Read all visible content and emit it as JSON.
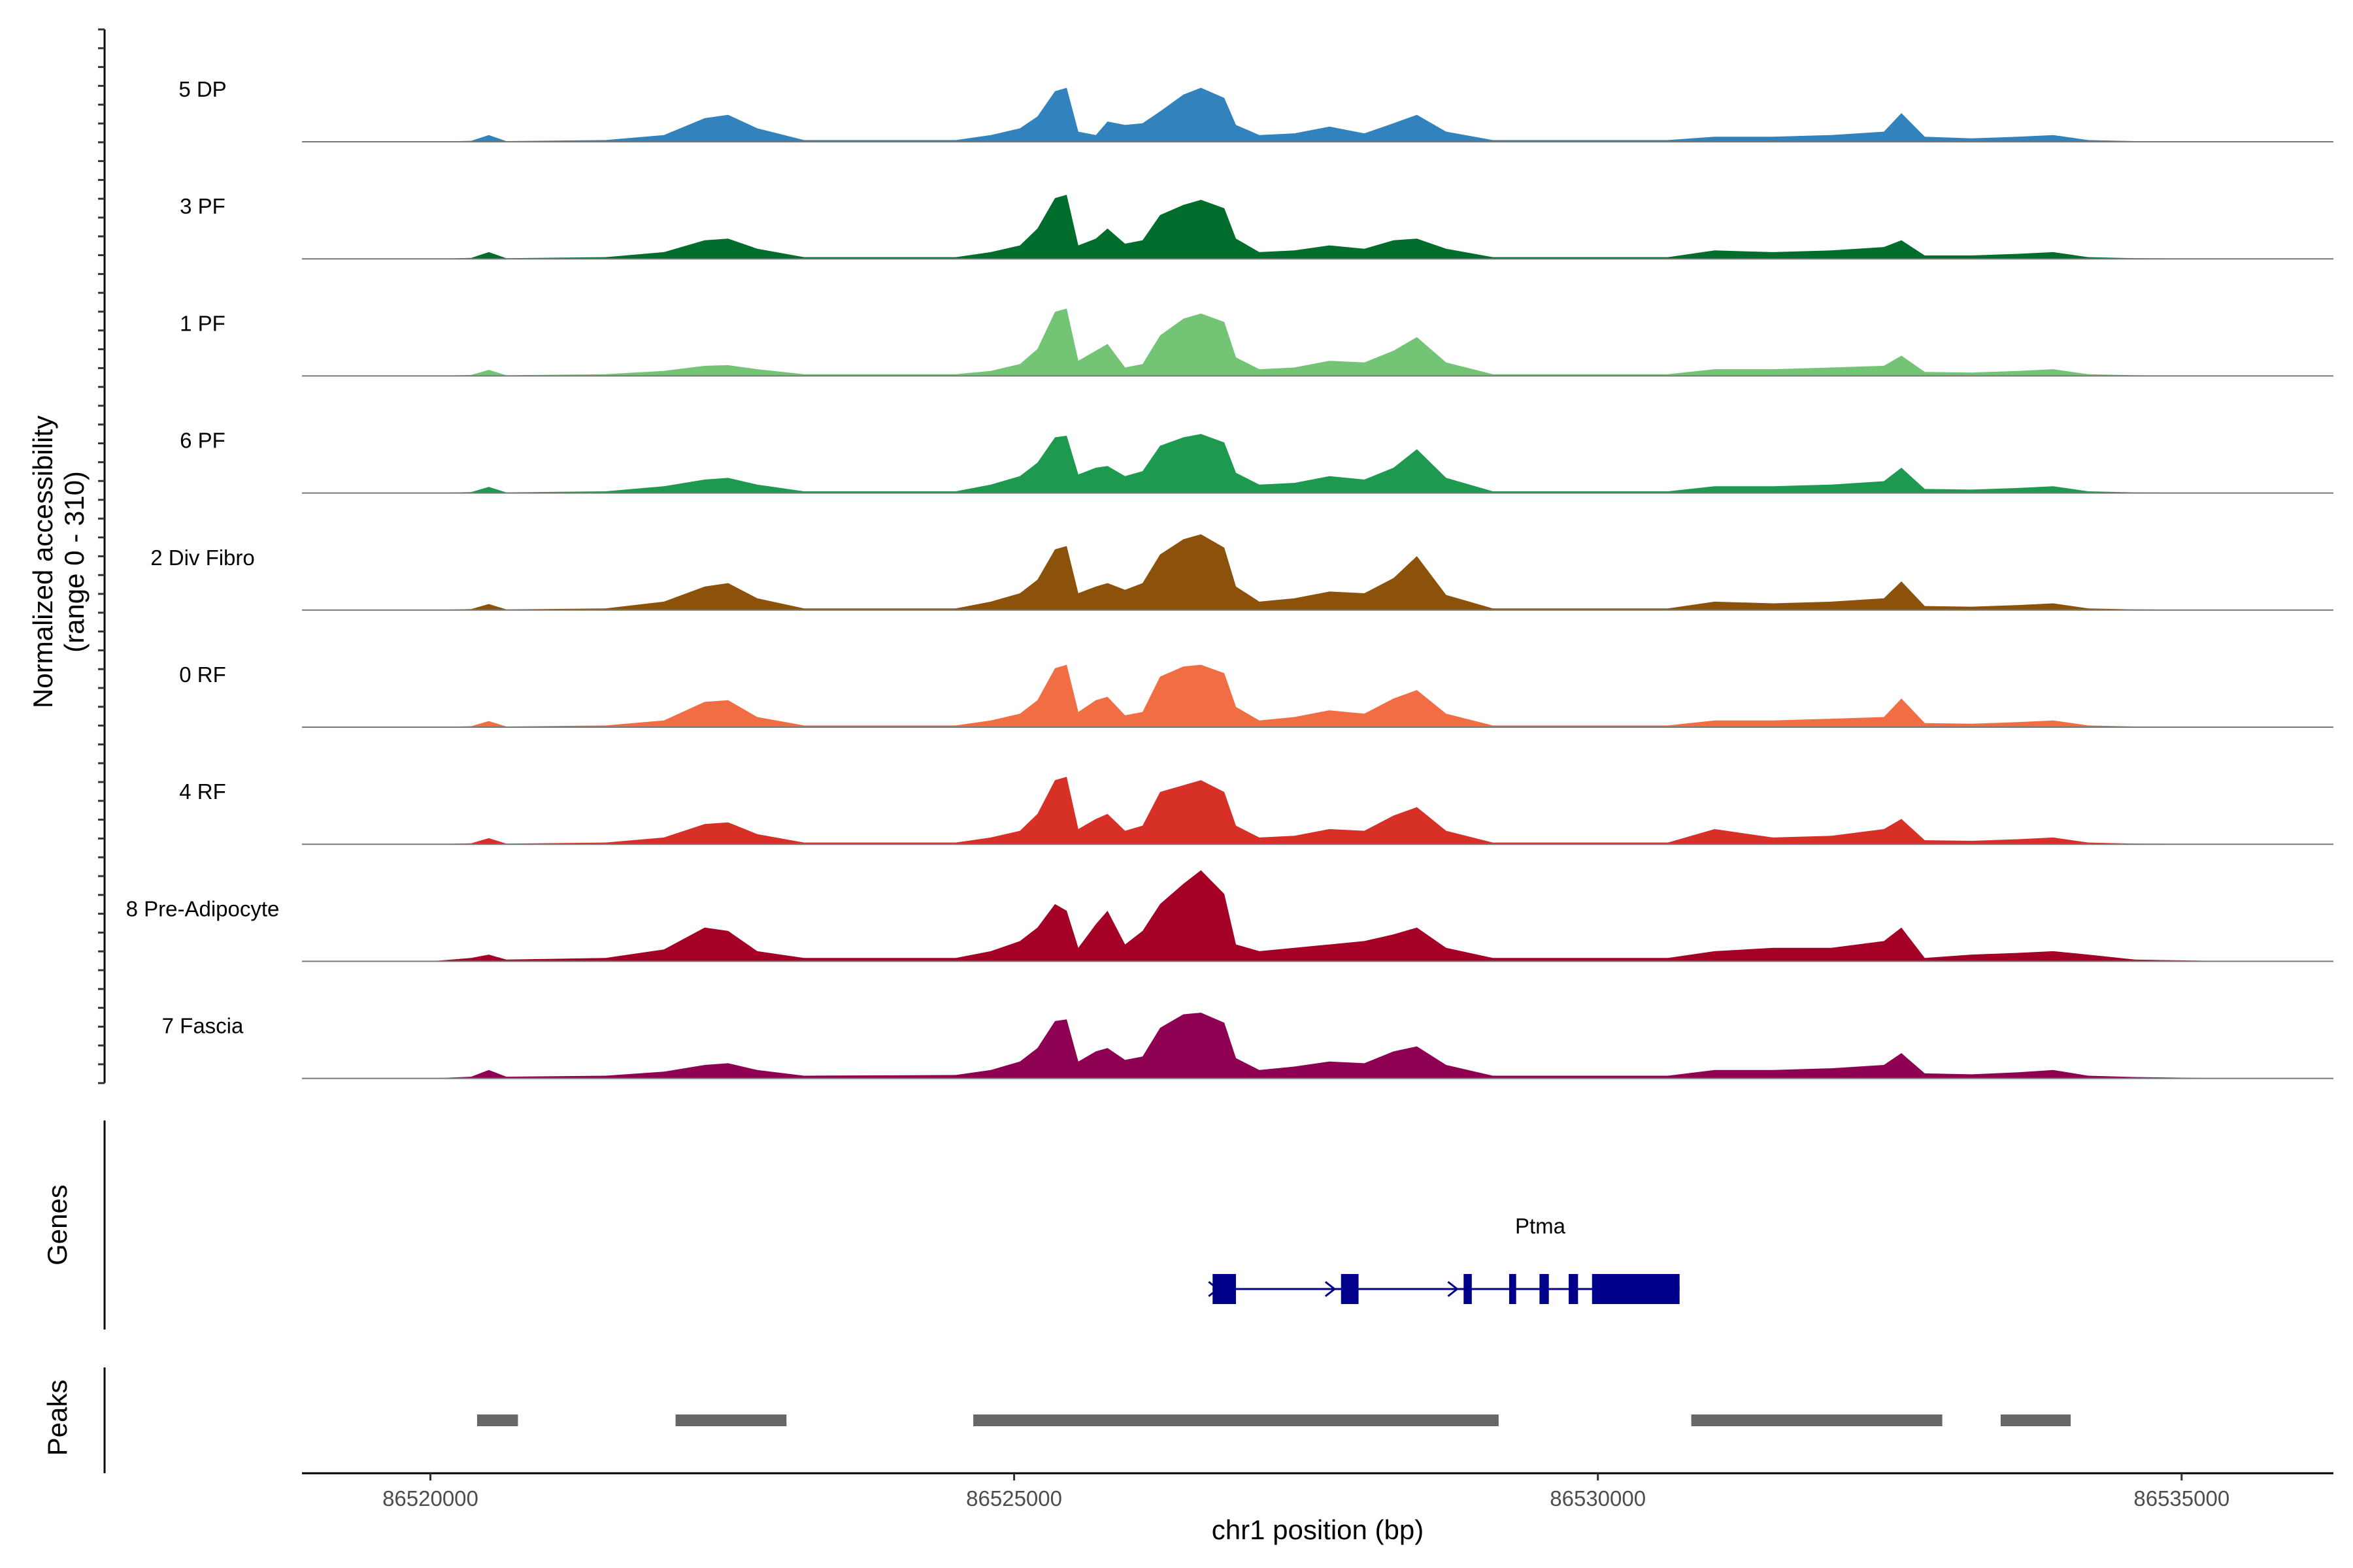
{
  "chart_data": {
    "type": "area",
    "title": "",
    "xlabel": "chr1 position (bp)",
    "ylabel": "Normalized accessibility\n(range 0 - 310)",
    "y_range": [
      0,
      310
    ],
    "x_range": [
      86518900,
      86536300
    ],
    "x_ticks": [
      86520000,
      86525000,
      86530000,
      86535000
    ],
    "x_tick_labels": [
      "86520000",
      "86525000",
      "86530000",
      "86535000"
    ],
    "tracks": [
      {
        "name": "5 DP",
        "color": "#3182BD",
        "x": [
          86518900,
          86520000,
          86520350,
          86520500,
          86520650,
          86521500,
          86522000,
          86522350,
          86522550,
          86522800,
          86523200,
          86524500,
          86524800,
          86525050,
          86525200,
          86525350,
          86525450,
          86525550,
          86525700,
          86525800,
          86525950,
          86526100,
          86526250,
          86526450,
          86526600,
          86526800,
          86526900,
          86527100,
          86527400,
          86527700,
          86528000,
          86528250,
          86528450,
          86528700,
          86529100,
          86530600,
          86531000,
          86531500,
          86532000,
          86532450,
          86532600,
          86532800,
          86533200,
          86533600,
          86533900,
          86534200,
          86534600,
          86535500,
          86536300
        ],
        "values": [
          0,
          0,
          3,
          20,
          2,
          5,
          20,
          70,
          80,
          40,
          5,
          5,
          20,
          40,
          75,
          150,
          160,
          30,
          20,
          60,
          50,
          55,
          90,
          140,
          160,
          130,
          50,
          20,
          25,
          45,
          25,
          55,
          80,
          30,
          5,
          5,
          15,
          15,
          20,
          30,
          85,
          15,
          10,
          15,
          20,
          5,
          2,
          0,
          0
        ]
      },
      {
        "name": "3 PF",
        "color": "#006D2C",
        "x": [
          86518900,
          86520000,
          86520350,
          86520500,
          86520650,
          86521500,
          86522000,
          86522350,
          86522550,
          86522800,
          86523200,
          86524500,
          86524800,
          86525050,
          86525200,
          86525350,
          86525450,
          86525550,
          86525700,
          86525800,
          86525950,
          86526100,
          86526250,
          86526450,
          86526600,
          86526800,
          86526900,
          86527100,
          86527400,
          86527700,
          86528000,
          86528250,
          86528450,
          86528700,
          86529100,
          86530600,
          86531000,
          86531500,
          86532000,
          86532450,
          86532600,
          86532800,
          86533200,
          86533600,
          86533900,
          86534200,
          86534600,
          86535500,
          86536300
        ],
        "values": [
          0,
          0,
          3,
          20,
          2,
          5,
          20,
          55,
          60,
          30,
          5,
          5,
          20,
          40,
          90,
          180,
          190,
          40,
          60,
          90,
          45,
          55,
          130,
          160,
          175,
          150,
          60,
          20,
          25,
          40,
          30,
          55,
          60,
          30,
          5,
          5,
          25,
          20,
          25,
          35,
          55,
          10,
          10,
          15,
          20,
          5,
          2,
          0,
          0
        ]
      },
      {
        "name": "1 PF",
        "color": "#74C476",
        "x": [
          86518900,
          86520000,
          86520350,
          86520500,
          86520650,
          86521500,
          86522000,
          86522350,
          86522550,
          86522800,
          86523200,
          86524500,
          86524800,
          86525050,
          86525200,
          86525350,
          86525450,
          86525550,
          86525700,
          86525800,
          86525950,
          86526100,
          86526250,
          86526450,
          86526600,
          86526800,
          86526900,
          86527100,
          86527400,
          86527700,
          86528000,
          86528250,
          86528450,
          86528700,
          86529100,
          86530600,
          86531000,
          86531500,
          86532000,
          86532450,
          86532600,
          86532800,
          86533200,
          86533600,
          86533900,
          86534200,
          86534600,
          86535500,
          86536300
        ],
        "values": [
          0,
          0,
          3,
          18,
          2,
          5,
          15,
          30,
          32,
          20,
          5,
          5,
          15,
          35,
          80,
          190,
          200,
          45,
          75,
          95,
          25,
          35,
          120,
          170,
          185,
          160,
          55,
          20,
          25,
          45,
          40,
          75,
          115,
          40,
          5,
          5,
          20,
          20,
          25,
          30,
          60,
          12,
          10,
          15,
          20,
          5,
          2,
          0,
          0
        ]
      },
      {
        "name": "6 PF",
        "color": "#1D9A50",
        "x": [
          86518900,
          86520000,
          86520350,
          86520500,
          86520650,
          86521500,
          86522000,
          86522350,
          86522550,
          86522800,
          86523200,
          86524500,
          86524800,
          86525050,
          86525200,
          86525350,
          86525450,
          86525550,
          86525700,
          86525800,
          86525950,
          86526100,
          86526250,
          86526450,
          86526600,
          86526800,
          86526900,
          86527100,
          86527400,
          86527700,
          86528000,
          86528250,
          86528450,
          86528700,
          86529100,
          86530600,
          86531000,
          86531500,
          86532000,
          86532450,
          86532600,
          86532800,
          86533200,
          86533600,
          86533900,
          86534200,
          86534600,
          86535500,
          86536300
        ],
        "values": [
          0,
          0,
          3,
          18,
          2,
          5,
          20,
          40,
          45,
          25,
          5,
          5,
          25,
          50,
          90,
          165,
          170,
          55,
          75,
          80,
          50,
          65,
          140,
          165,
          175,
          150,
          60,
          25,
          30,
          50,
          40,
          75,
          130,
          45,
          5,
          5,
          20,
          20,
          25,
          35,
          75,
          12,
          10,
          15,
          20,
          5,
          2,
          0,
          0
        ]
      },
      {
        "name": "2 Div Fibro",
        "color": "#8C510A",
        "x": [
          86518900,
          86520000,
          86520350,
          86520500,
          86520650,
          86521500,
          86522000,
          86522350,
          86522550,
          86522800,
          86523200,
          86524500,
          86524800,
          86525050,
          86525200,
          86525350,
          86525450,
          86525550,
          86525700,
          86525800,
          86525950,
          86526100,
          86526250,
          86526450,
          86526600,
          86526800,
          86526900,
          86527100,
          86527400,
          86527700,
          86528000,
          86528250,
          86528450,
          86528700,
          86529100,
          86530600,
          86531000,
          86531500,
          86532000,
          86532450,
          86532600,
          86532800,
          86533200,
          86533600,
          86533900,
          86534200,
          86534600,
          86535500,
          86536300
        ],
        "values": [
          0,
          0,
          3,
          18,
          2,
          5,
          25,
          70,
          80,
          35,
          5,
          5,
          25,
          50,
          90,
          180,
          190,
          50,
          70,
          80,
          60,
          80,
          165,
          210,
          225,
          185,
          70,
          25,
          35,
          55,
          50,
          95,
          160,
          45,
          5,
          5,
          25,
          20,
          25,
          35,
          85,
          12,
          10,
          15,
          20,
          5,
          2,
          0,
          0
        ]
      },
      {
        "name": "0 RF",
        "color": "#F16D43",
        "x": [
          86518900,
          86520000,
          86520350,
          86520500,
          86520650,
          86521500,
          86522000,
          86522350,
          86522550,
          86522800,
          86523200,
          86524500,
          86524800,
          86525050,
          86525200,
          86525350,
          86525450,
          86525550,
          86525700,
          86525800,
          86525950,
          86526100,
          86526250,
          86526450,
          86526600,
          86526800,
          86526900,
          86527100,
          86527400,
          86527700,
          86528000,
          86528250,
          86528450,
          86528700,
          86529100,
          86530600,
          86531000,
          86531500,
          86532000,
          86532450,
          86532600,
          86532800,
          86533200,
          86533600,
          86533900,
          86534200,
          86534600,
          86535500,
          86536300
        ],
        "values": [
          0,
          0,
          3,
          18,
          2,
          5,
          20,
          75,
          80,
          30,
          5,
          5,
          20,
          40,
          80,
          175,
          185,
          45,
          80,
          90,
          35,
          45,
          150,
          180,
          185,
          160,
          60,
          20,
          30,
          50,
          40,
          85,
          110,
          40,
          5,
          5,
          20,
          20,
          25,
          30,
          85,
          12,
          10,
          15,
          20,
          5,
          2,
          0,
          0
        ]
      },
      {
        "name": "4 RF",
        "color": "#D73027",
        "x": [
          86518900,
          86520000,
          86520350,
          86520500,
          86520650,
          86521500,
          86522000,
          86522350,
          86522550,
          86522800,
          86523200,
          86524500,
          86524800,
          86525050,
          86525200,
          86525350,
          86525450,
          86525550,
          86525700,
          86525800,
          86525950,
          86526100,
          86526250,
          86526450,
          86526600,
          86526800,
          86526900,
          86527100,
          86527400,
          86527700,
          86528000,
          86528250,
          86528450,
          86528700,
          86529100,
          86530600,
          86531000,
          86531500,
          86532000,
          86532450,
          86532600,
          86532800,
          86533200,
          86533600,
          86533900,
          86534200,
          86534600,
          86535500,
          86536300
        ],
        "values": [
          0,
          0,
          3,
          18,
          2,
          5,
          20,
          60,
          65,
          30,
          5,
          5,
          20,
          40,
          90,
          190,
          200,
          45,
          75,
          90,
          40,
          55,
          155,
          175,
          190,
          155,
          55,
          20,
          25,
          45,
          40,
          85,
          110,
          40,
          5,
          5,
          45,
          20,
          25,
          45,
          75,
          12,
          10,
          15,
          20,
          5,
          2,
          0,
          0
        ]
      },
      {
        "name": "8 Pre-Adipocyte",
        "color": "#A50026",
        "x": [
          86518900,
          86520000,
          86520350,
          86520500,
          86520650,
          86521500,
          86522000,
          86522350,
          86522550,
          86522800,
          86523200,
          86524500,
          86524800,
          86525050,
          86525200,
          86525350,
          86525450,
          86525550,
          86525700,
          86525800,
          86525950,
          86526100,
          86526250,
          86526450,
          86526600,
          86526800,
          86526900,
          86527100,
          86527400,
          86527700,
          86528000,
          86528250,
          86528450,
          86528700,
          86529100,
          86530600,
          86531000,
          86531500,
          86532000,
          86532450,
          86532600,
          86532800,
          86533200,
          86533600,
          86533900,
          86534200,
          86534600,
          86535500,
          86536300
        ],
        "values": [
          0,
          0,
          10,
          20,
          5,
          10,
          35,
          100,
          90,
          30,
          10,
          10,
          30,
          60,
          100,
          170,
          150,
          40,
          110,
          150,
          50,
          90,
          170,
          230,
          270,
          200,
          50,
          30,
          40,
          50,
          60,
          80,
          100,
          40,
          10,
          10,
          30,
          40,
          40,
          60,
          100,
          10,
          20,
          25,
          30,
          20,
          5,
          0,
          0
        ]
      },
      {
        "name": "7 Fascia",
        "color": "#8E0152",
        "x": [
          86518900,
          86520000,
          86520350,
          86520500,
          86520650,
          86521500,
          86522000,
          86522350,
          86522550,
          86522800,
          86523200,
          86524500,
          86524800,
          86525050,
          86525200,
          86525350,
          86525450,
          86525550,
          86525700,
          86525800,
          86525950,
          86526100,
          86526250,
          86526450,
          86526600,
          86526800,
          86526900,
          86527100,
          86527400,
          86527700,
          86528000,
          86528250,
          86528450,
          86528700,
          86529100,
          86530600,
          86531000,
          86531500,
          86532000,
          86532450,
          86532600,
          86532800,
          86533200,
          86533600,
          86533900,
          86534200,
          86534600,
          86535500,
          86536300
        ],
        "values": [
          0,
          0,
          5,
          25,
          5,
          8,
          20,
          40,
          45,
          25,
          8,
          10,
          25,
          50,
          90,
          170,
          175,
          50,
          80,
          90,
          55,
          65,
          150,
          190,
          195,
          165,
          60,
          25,
          35,
          50,
          45,
          80,
          95,
          40,
          8,
          8,
          25,
          25,
          30,
          40,
          75,
          15,
          12,
          18,
          25,
          8,
          4,
          0,
          0
        ]
      }
    ],
    "gene_track": {
      "label": "Genes",
      "name": "Ptma",
      "color": "#00008B",
      "start": 86526700,
      "end": 86530700,
      "exons": [
        [
          86526700,
          86526900
        ],
        [
          86527800,
          86527950
        ],
        [
          86528850,
          86528920
        ],
        [
          86529240,
          86529300
        ],
        [
          86529500,
          86529580
        ],
        [
          86529750,
          86529830
        ],
        [
          86529950,
          86530700
        ]
      ],
      "arrows": [
        86526700,
        86527700,
        86528750
      ]
    },
    "peak_track": {
      "label": "Peaks",
      "color": "#666666",
      "peaks": [
        [
          86520400,
          86520750
        ],
        [
          86522100,
          86523050
        ],
        [
          86524650,
          86529150
        ],
        [
          86530800,
          86532950
        ],
        [
          86533450,
          86534050
        ]
      ]
    }
  }
}
